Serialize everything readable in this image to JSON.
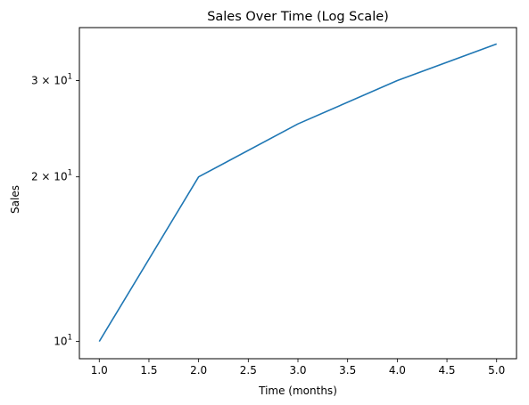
{
  "chart_data": {
    "type": "line",
    "title": "Sales Over Time (Log Scale)",
    "xlabel": "Time (months)",
    "ylabel": "Sales",
    "yscale": "log",
    "xlim": [
      0.8,
      5.2
    ],
    "ylim": [
      9.3,
      37.5
    ],
    "grid": false,
    "legend": "none",
    "x_ticks": [
      1.0,
      1.5,
      2.0,
      2.5,
      3.0,
      3.5,
      4.0,
      4.5,
      5.0
    ],
    "x_tick_labels": [
      "1.0",
      "1.5",
      "2.0",
      "2.5",
      "3.0",
      "3.5",
      "4.0",
      "4.5",
      "5.0"
    ],
    "y_ticks": [
      {
        "value": 10,
        "base": "10",
        "exponent": "1",
        "mantissa": ""
      },
      {
        "value": 20,
        "base": "10",
        "exponent": "1",
        "mantissa": "2"
      },
      {
        "value": 30,
        "base": "10",
        "exponent": "1",
        "mantissa": "3"
      }
    ],
    "series": [
      {
        "color": "#1f77b4",
        "x": [
          1,
          2,
          3,
          4,
          5
        ],
        "y": [
          10,
          20,
          25,
          30,
          35
        ]
      }
    ]
  }
}
